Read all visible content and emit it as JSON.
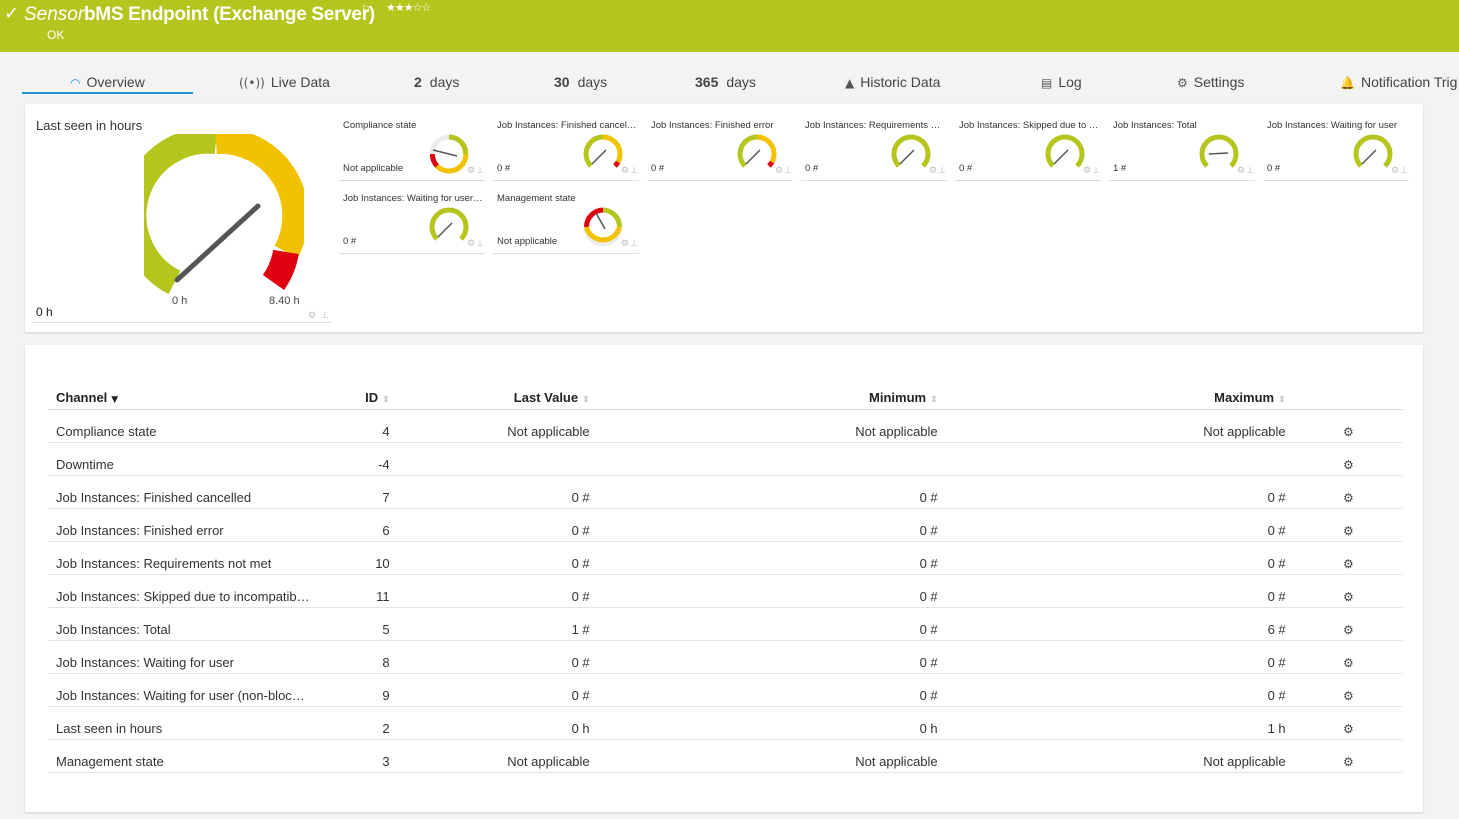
{
  "header": {
    "check_icon": "checkmark-icon",
    "sensor_word": "Sensor",
    "sensor_name": "bMS Endpoint (Exchange Server)",
    "flag_icon": "flag-icon",
    "stars": "★★★☆☆",
    "rating": 3,
    "status": "OK",
    "bg_color": "#b6c51d"
  },
  "tabs": [
    {
      "icon": "◠",
      "label": "Overview",
      "active": true
    },
    {
      "icon": "((•))",
      "label": "Live Data"
    },
    {
      "num": "2",
      "label": "days"
    },
    {
      "num": "30",
      "label": "days"
    },
    {
      "num": "365",
      "label": "days"
    },
    {
      "icon": "▲",
      "label": "Historic Data"
    },
    {
      "icon": "▤",
      "label": "Log"
    },
    {
      "icon": "⚙",
      "label": "Settings"
    },
    {
      "icon": "🔔",
      "label": "Notification Trig"
    }
  ],
  "big_gauge": {
    "title": "Last seen in hours",
    "value": "0 h",
    "min_label": "0 h",
    "max_label": "8.40 h"
  },
  "mini_gauges": [
    {
      "title": "Compliance state",
      "value": "Not applicable"
    },
    {
      "title": "Job Instances: Finished cancelled",
      "value": "0 #"
    },
    {
      "title": "Job Instances: Finished error",
      "value": "0 #"
    },
    {
      "title": "Job Instances: Requirements not met",
      "value": "0 #"
    },
    {
      "title": "Job Instances: Skipped due to incompatibility",
      "value": "0 #"
    },
    {
      "title": "Job Instances: Total",
      "value": "1 #"
    },
    {
      "title": "Job Instances: Waiting for user",
      "value": "0 #"
    },
    {
      "title": "Job Instances: Waiting for user (non-blocking)",
      "value": "0 #"
    },
    {
      "title": "Management state",
      "value": "Not applicable"
    }
  ],
  "table": {
    "headers": {
      "channel": "Channel",
      "id": "ID",
      "last": "Last Value",
      "min": "Minimum",
      "max": "Maximum"
    },
    "rows": [
      {
        "channel": "Compliance state",
        "id": "4",
        "last": "Not applicable",
        "min": "Not applicable",
        "max": "Not applicable"
      },
      {
        "channel": "Downtime",
        "id": "-4",
        "last": "",
        "min": "",
        "max": ""
      },
      {
        "channel": "Job Instances: Finished cancelled",
        "id": "7",
        "last": "0 #",
        "min": "0 #",
        "max": "0 #"
      },
      {
        "channel": "Job Instances: Finished error",
        "id": "6",
        "last": "0 #",
        "min": "0 #",
        "max": "0 #"
      },
      {
        "channel": "Job Instances: Requirements not met",
        "id": "10",
        "last": "0 #",
        "min": "0 #",
        "max": "0 #"
      },
      {
        "channel": "Job Instances: Skipped due to incompatib…",
        "id": "11",
        "last": "0 #",
        "min": "0 #",
        "max": "0 #"
      },
      {
        "channel": "Job Instances: Total",
        "id": "5",
        "last": "1 #",
        "min": "0 #",
        "max": "6 #"
      },
      {
        "channel": "Job Instances: Waiting for user",
        "id": "8",
        "last": "0 #",
        "min": "0 #",
        "max": "0 #"
      },
      {
        "channel": "Job Instances: Waiting for user (non-bloc…",
        "id": "9",
        "last": "0 #",
        "min": "0 #",
        "max": "0 #"
      },
      {
        "channel": "Last seen in hours",
        "id": "2",
        "last": "0 h",
        "min": "0 h",
        "max": "1 h"
      },
      {
        "channel": "Management state",
        "id": "3",
        "last": "Not applicable",
        "min": "Not applicable",
        "max": "Not applicable"
      }
    ]
  },
  "colors": {
    "green": "#b6c51d",
    "yellow": "#f2c200",
    "red": "#e0000f",
    "accent": "#1f96d4"
  }
}
